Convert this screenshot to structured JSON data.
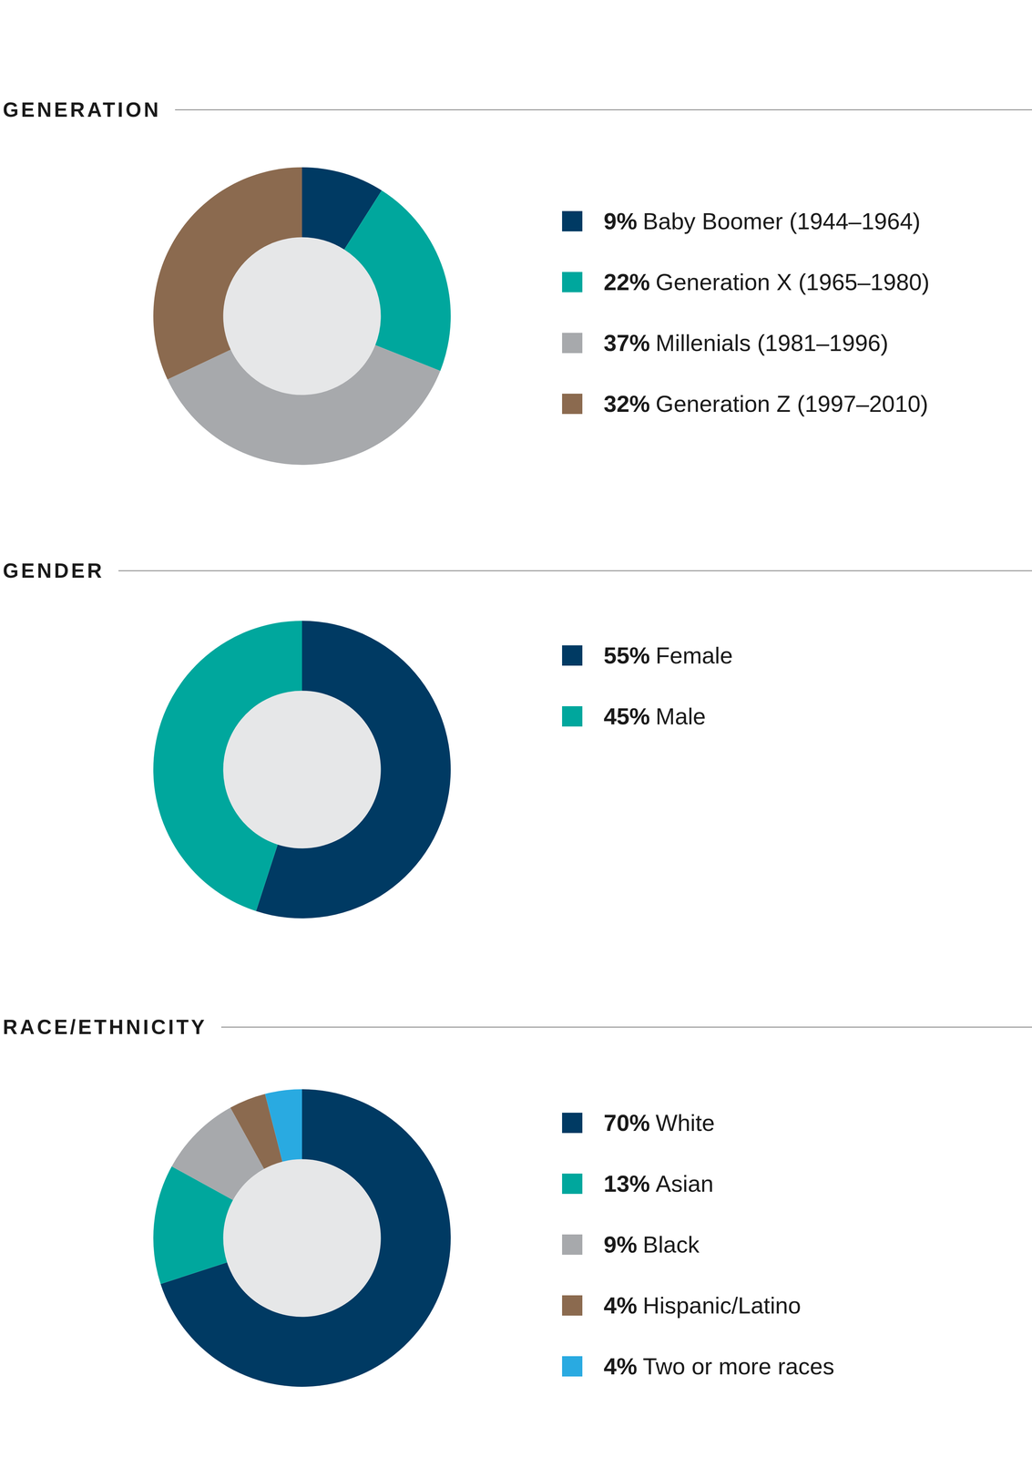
{
  "chart_data": [
    {
      "type": "pie",
      "title": "GENERATION",
      "categories": [
        "Baby Boomer (1944–1964)",
        "Generation X (1965–1980)",
        "Millenials (1981–1996)",
        "Generation Z (1997–2010)"
      ],
      "values": [
        9,
        22,
        37,
        32
      ],
      "value_labels": [
        "9%",
        "22%",
        "37%",
        "32%"
      ],
      "colors": [
        "#003a63",
        "#00a79d",
        "#a7a9ac",
        "#8b6a4f"
      ],
      "legend": "right"
    },
    {
      "type": "pie",
      "title": "GENDER",
      "categories": [
        "Female",
        "Male"
      ],
      "values": [
        55,
        45
      ],
      "value_labels": [
        "55%",
        "45%"
      ],
      "colors": [
        "#003a63",
        "#00a79d"
      ],
      "legend": "right"
    },
    {
      "type": "pie",
      "title": "RACE/ETHNICITY",
      "categories": [
        "White",
        "Asian",
        "Black",
        "Hispanic/Latino",
        "Two or more races"
      ],
      "values": [
        70,
        13,
        9,
        4,
        4
      ],
      "value_labels": [
        "70%",
        "13%",
        "9%",
        "4%",
        "4%"
      ],
      "colors": [
        "#003a63",
        "#00a79d",
        "#a7a9ac",
        "#8b6a4f",
        "#29aae1"
      ],
      "legend": "right"
    }
  ]
}
